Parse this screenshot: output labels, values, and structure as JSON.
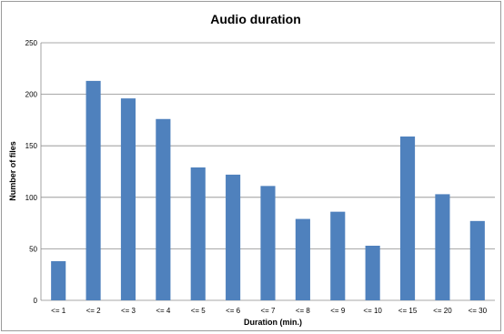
{
  "chart_data": {
    "type": "bar",
    "title": "Audio duration",
    "xlabel": "Duration (min.)",
    "ylabel": "Number of files",
    "categories": [
      "<= 1",
      "<= 2",
      "<= 3",
      "<= 4",
      "<= 5",
      "<= 6",
      "<= 7",
      "<= 8",
      "<= 9",
      "<= 10",
      "<= 15",
      "<= 20",
      "<= 30"
    ],
    "values": [
      38,
      213,
      196,
      176,
      129,
      122,
      111,
      79,
      86,
      53,
      159,
      103,
      77
    ],
    "ylim": [
      0,
      250
    ],
    "yticks": [
      0,
      50,
      100,
      150,
      200,
      250
    ],
    "grid": true,
    "legend": "none",
    "bar_color": "#4f81bd",
    "grid_color": "#8c8c8c"
  }
}
